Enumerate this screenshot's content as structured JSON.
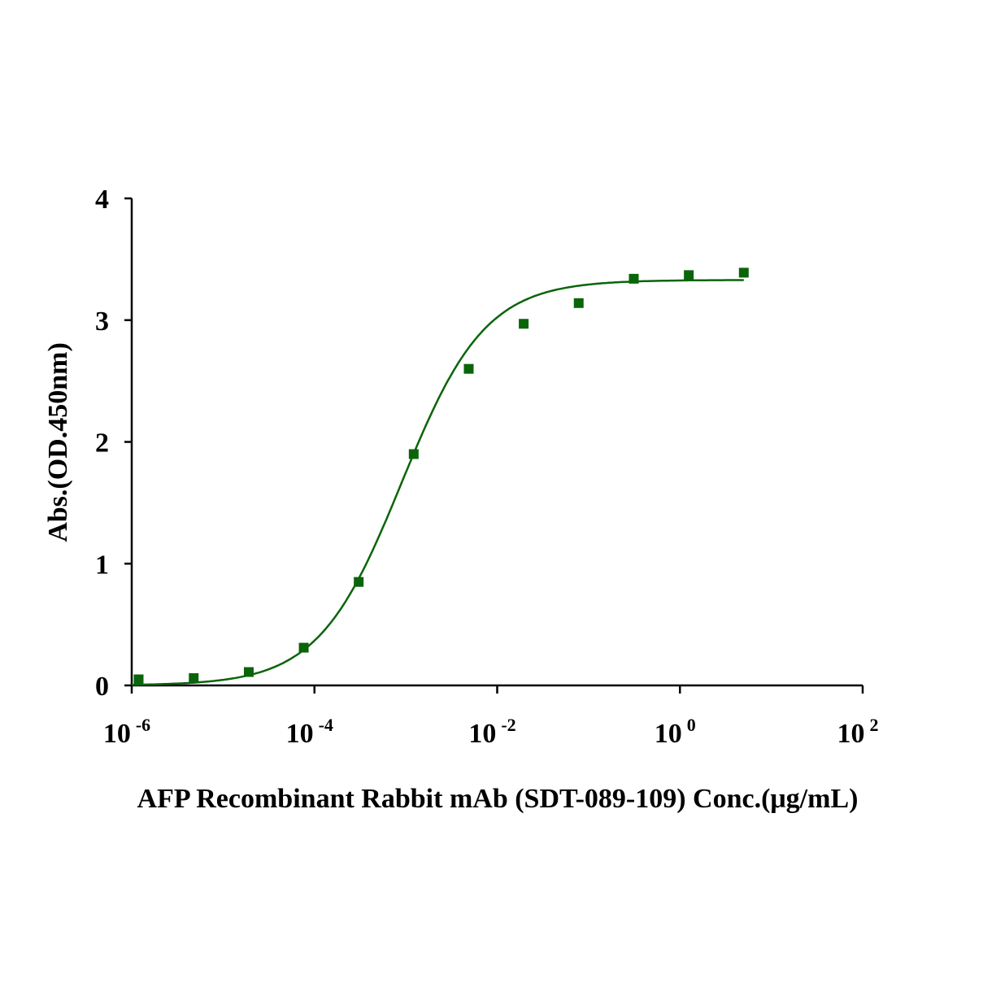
{
  "chart_data": {
    "type": "scatter",
    "title": "",
    "xlabel": "AFP Recombinant Rabbit mAb (SDT-089-109) Conc.(μg/mL)",
    "ylabel": "Abs.(OD.450nm)",
    "xscale": "log",
    "xlim": [
      1e-06,
      100
    ],
    "ylim": [
      0,
      4
    ],
    "x_ticks": [
      {
        "base": "10",
        "exp": "-6",
        "value": 1e-06
      },
      {
        "base": "10",
        "exp": "-4",
        "value": 0.0001
      },
      {
        "base": "10",
        "exp": "-2",
        "value": 0.01
      },
      {
        "base": "10",
        "exp": "0",
        "value": 1
      },
      {
        "base": "10",
        "exp": "2",
        "value": 100
      }
    ],
    "y_ticks": [
      "0",
      "1",
      "2",
      "3",
      "4"
    ],
    "grid": false,
    "color": "#0a640a",
    "marker": "square",
    "points": {
      "x": [
        1.19e-06,
        4.77e-06,
        1.91e-05,
        7.63e-05,
        0.000305,
        0.00122,
        0.00488,
        0.0195,
        0.078,
        0.3125,
        1.25,
        5
      ],
      "y": [
        0.05,
        0.06,
        0.11,
        0.31,
        0.85,
        1.9,
        2.6,
        2.97,
        3.14,
        3.34,
        3.37,
        3.39
      ]
    },
    "fit": {
      "model": "4PL",
      "bottom": 0.0,
      "top": 3.33,
      "ec50": 0.0009,
      "hill": 0.95,
      "x_range": [
        1e-06,
        5
      ]
    }
  }
}
